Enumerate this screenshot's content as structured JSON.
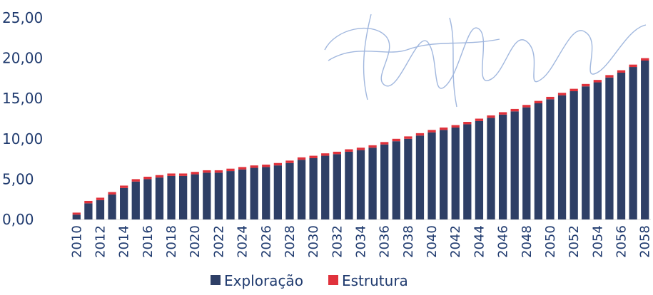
{
  "chart_data": {
    "type": "bar",
    "stacked": true,
    "title": "",
    "xlabel": "",
    "ylabel": "",
    "ylim": [
      0,
      25
    ],
    "y_ticks": [
      "0,00",
      "5,00",
      "10,00",
      "15,00",
      "20,00",
      "25,00"
    ],
    "grid": false,
    "legend_position": "bottom",
    "categories": [
      "2010",
      "2011",
      "2012",
      "2013",
      "2014",
      "2015",
      "2016",
      "2017",
      "2018",
      "2019",
      "2020",
      "2021",
      "2022",
      "2023",
      "2024",
      "2025",
      "2026",
      "2027",
      "2028",
      "2029",
      "2030",
      "2031",
      "2032",
      "2033",
      "2034",
      "2035",
      "2036",
      "2037",
      "2038",
      "2039",
      "2040",
      "2041",
      "2042",
      "2043",
      "2044",
      "2045",
      "2046",
      "2047",
      "2048",
      "2049",
      "2050",
      "2051",
      "2052",
      "2053",
      "2054",
      "2055",
      "2056",
      "2057",
      "2058"
    ],
    "x_tick_labels": [
      "2010",
      "2012",
      "2014",
      "2016",
      "2018",
      "2020",
      "2022",
      "2024",
      "2026",
      "2028",
      "2030",
      "2032",
      "2034",
      "2036",
      "2038",
      "2040",
      "2042",
      "2044",
      "2046",
      "2048",
      "2050",
      "2052",
      "2054",
      "2056",
      "2058"
    ],
    "series": [
      {
        "name": "Exploração",
        "color": "#2e3f66",
        "values": [
          0.6,
          2.0,
          2.4,
          3.1,
          3.9,
          4.7,
          5.0,
          5.2,
          5.4,
          5.4,
          5.6,
          5.8,
          5.8,
          6.0,
          6.2,
          6.4,
          6.5,
          6.7,
          7.0,
          7.4,
          7.6,
          7.9,
          8.1,
          8.4,
          8.6,
          8.9,
          9.3,
          9.7,
          10.0,
          10.4,
          10.8,
          11.1,
          11.4,
          11.8,
          12.2,
          12.6,
          13.0,
          13.4,
          13.9,
          14.4,
          14.9,
          15.4,
          15.9,
          16.5,
          17.0,
          17.6,
          18.2,
          18.9,
          19.7
        ]
      },
      {
        "name": "Estrutura",
        "color": "#e0323c",
        "values": [
          0.25,
          0.3,
          0.3,
          0.3,
          0.3,
          0.3,
          0.3,
          0.3,
          0.3,
          0.3,
          0.3,
          0.3,
          0.3,
          0.3,
          0.3,
          0.3,
          0.3,
          0.3,
          0.3,
          0.3,
          0.3,
          0.3,
          0.3,
          0.3,
          0.3,
          0.3,
          0.3,
          0.3,
          0.3,
          0.3,
          0.3,
          0.3,
          0.3,
          0.3,
          0.3,
          0.3,
          0.3,
          0.3,
          0.3,
          0.3,
          0.3,
          0.3,
          0.3,
          0.3,
          0.3,
          0.3,
          0.3,
          0.3,
          0.3
        ]
      }
    ],
    "legend": {
      "items": [
        {
          "label": "Exploração",
          "color": "#2e3f66"
        },
        {
          "label": "Estrutura",
          "color": "#e0323c"
        }
      ]
    }
  }
}
